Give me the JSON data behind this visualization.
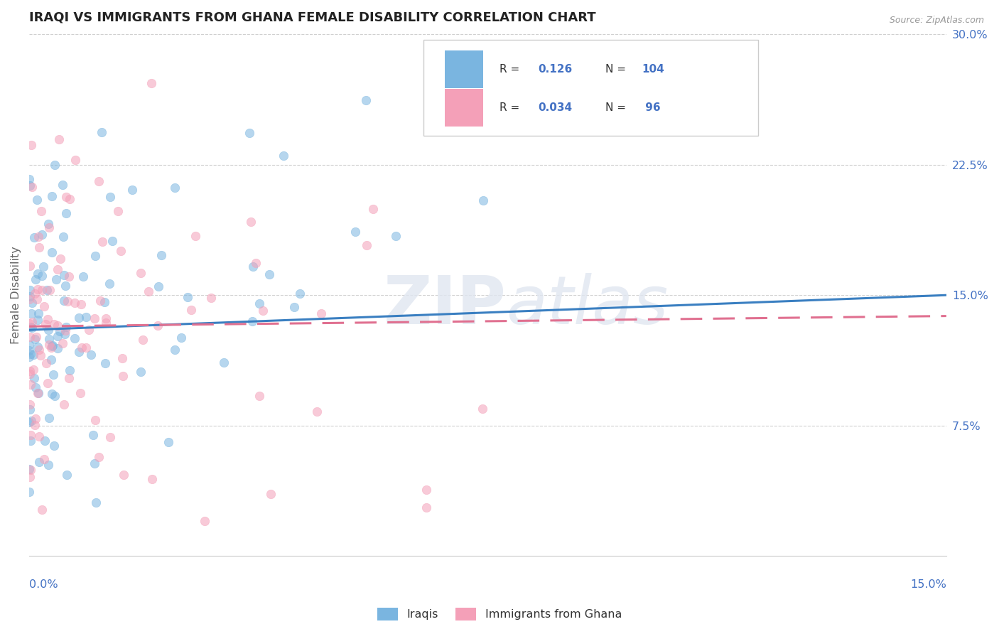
{
  "title": "IRAQI VS IMMIGRANTS FROM GHANA FEMALE DISABILITY CORRELATION CHART",
  "source": "Source: ZipAtlas.com",
  "ylabel": "Female Disability",
  "xlim": [
    0.0,
    0.15
  ],
  "ylim": [
    0.0,
    0.3
  ],
  "yticks": [
    0.075,
    0.15,
    0.225,
    0.3
  ],
  "ytick_labels": [
    "7.5%",
    "15.0%",
    "22.5%",
    "30.0%"
  ],
  "blue_color": "#7ab5e0",
  "pink_color": "#f4a0b8",
  "trend_blue": "#3a7fc1",
  "trend_pink": "#e07090",
  "watermark": "ZIPatlas",
  "iraqis_label": "Iraqis",
  "ghana_label": "Immigrants from Ghana",
  "legend_r1": "R =  0.126",
  "legend_n1": "N = 104",
  "legend_r2": "R =  0.034",
  "legend_n2": "N =  96",
  "blue_line_y0": 0.13,
  "blue_line_y1": 0.15,
  "pink_line_y0": 0.132,
  "pink_line_y1": 0.138
}
